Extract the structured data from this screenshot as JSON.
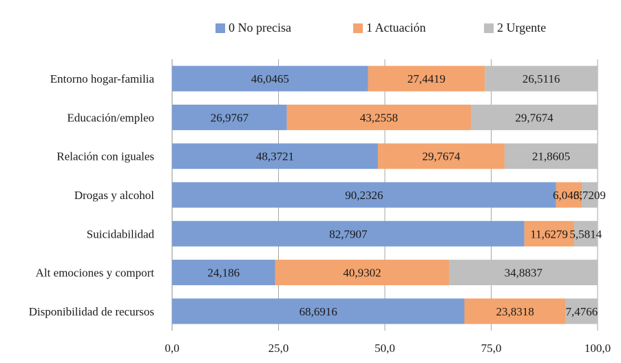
{
  "chart_data": {
    "type": "bar",
    "orientation": "horizontal",
    "stacked": true,
    "title": "",
    "xlabel": "",
    "ylabel": "",
    "xlim": [
      0,
      100
    ],
    "x_ticks": [
      "0,0",
      "25,0",
      "50,0",
      "75,0",
      "100,0"
    ],
    "x_tick_values": [
      0,
      25,
      50,
      75,
      100
    ],
    "grid": true,
    "legend_position": "top",
    "categories": [
      "Entorno hogar-familia",
      "Educación/empleo",
      "Relación con iguales",
      "Drogas y alcohol",
      "Suicidabilidad",
      "Alt emociones y comport",
      "Disponibilidad de recursos"
    ],
    "series": [
      {
        "name": "0 No precisa",
        "color": "#7b9dd3",
        "values": [
          46.0465,
          26.9767,
          48.3721,
          90.2326,
          82.7907,
          24.186,
          68.6916
        ],
        "labels": [
          "46,0465",
          "26,9767",
          "48,3721",
          "90,2326",
          "82,7907",
          "24,186",
          "68,6916"
        ]
      },
      {
        "name": "1 Actuación",
        "color": "#f4a46e",
        "values": [
          27.4419,
          43.2558,
          29.7674,
          6.0465,
          11.6279,
          40.9302,
          23.8318
        ],
        "labels": [
          "27,4419",
          "43,2558",
          "29,7674",
          "6,0465",
          "11,6279",
          "40,9302",
          "23,8318"
        ]
      },
      {
        "name": "2 Urgente",
        "color": "#bfbfbf",
        "values": [
          26.5116,
          29.7674,
          21.8605,
          3.7209,
          5.5814,
          34.8837,
          7.4766
        ],
        "labels": [
          "26,5116",
          "29,7674",
          "21,8605",
          "3,7209",
          "5,5814",
          "34,8837",
          "7,4766"
        ]
      }
    ]
  },
  "colors": {
    "grid": "#a6a6a6",
    "axis": "#8c8c8c",
    "text": "#1a1a1a"
  }
}
